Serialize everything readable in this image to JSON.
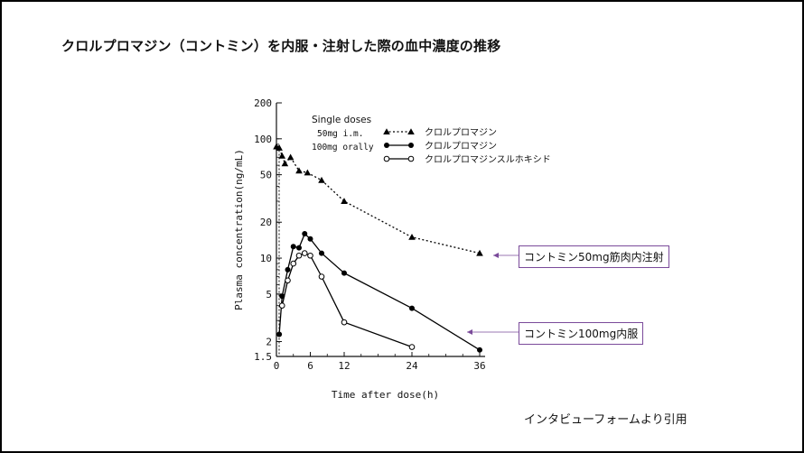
{
  "page": {
    "title": "クロルプロマジン（コントミン）を内服・注射した際の血中濃度の推移",
    "source": "インタビューフォームより引用"
  },
  "callouts": {
    "im": "コントミン50mg筋肉内注射",
    "oral": "コントミン100mg内服",
    "color": "#7a4a9a"
  },
  "chart_data": {
    "type": "line",
    "xlabel": "Time after dose(h)",
    "ylabel": "Plasma concentration(ng/mL)",
    "x_ticks": [
      0,
      6,
      12,
      24,
      36
    ],
    "y_scale": "log",
    "y_ticks": [
      1.5,
      2,
      5,
      10,
      20,
      50,
      100,
      200
    ],
    "xlim": [
      0,
      36
    ],
    "ylim": [
      1.5,
      200
    ],
    "legend_title": "Single doses",
    "legend_notes": [
      "50mg i.m.",
      "100mg orally"
    ],
    "series": [
      {
        "name": "クロルプロマジン",
        "dose": "50mg i.m.",
        "marker": "triangle",
        "line_style": "dotted",
        "color": "#000000",
        "x": [
          0,
          0.5,
          1,
          1.5,
          2.5,
          4,
          5.5,
          8,
          12,
          24,
          36
        ],
        "y": [
          86,
          84,
          72,
          62,
          70,
          54,
          52,
          45,
          30,
          15,
          11
        ]
      },
      {
        "name": "クロルプロマジン",
        "dose": "100mg orally",
        "marker": "filled-circle",
        "line_style": "solid",
        "color": "#000000",
        "x": [
          0.5,
          1,
          2,
          3,
          4,
          5,
          6,
          8,
          12,
          24,
          36
        ],
        "y": [
          2.3,
          4.8,
          8,
          12.5,
          12.2,
          16,
          14.5,
          11,
          7.5,
          3.8,
          1.7
        ]
      },
      {
        "name": "クロルプロマジンスルホキシド",
        "dose": "100mg orally",
        "marker": "open-circle",
        "line_style": "solid",
        "color": "#000000",
        "x": [
          1,
          2,
          3,
          4,
          5,
          6,
          8,
          12,
          24
        ],
        "y": [
          4,
          6.5,
          9,
          10.5,
          11,
          10.5,
          7,
          2.9,
          1.8
        ]
      }
    ]
  }
}
